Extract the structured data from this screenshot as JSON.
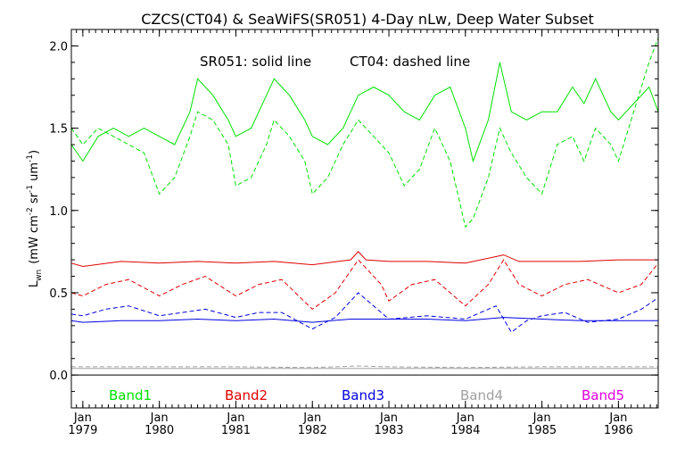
{
  "chart_data": {
    "type": "line",
    "title": "CZCS(CT04) & SeaWiFS(SR051) 4-Day nLw, Deep Water Subset",
    "annotation_solid": "SR051: solid line",
    "annotation_dashed": "CT04: dashed line",
    "ylabel": {
      "base": "L",
      "base_sub": "wn",
      "units_open": "(mW cm",
      "units_exp1": "-2",
      "units_mid": " sr",
      "units_exp2": "-1",
      "units_um": " um",
      "units_exp3": "-1",
      "units_close": ")"
    },
    "ylim": [
      -0.2,
      2.1
    ],
    "xlim": [
      1978.85,
      1986.52
    ],
    "y_ticks": [
      {
        "value": 0.0,
        "label": "0.0"
      },
      {
        "value": 0.5,
        "label": "0.5"
      },
      {
        "value": 1.0,
        "label": "1.0"
      },
      {
        "value": 1.5,
        "label": "1.5"
      },
      {
        "value": 2.0,
        "label": "2.0"
      }
    ],
    "x_ticks": [
      {
        "value": 1979.0,
        "month": "Jan",
        "year": "1979"
      },
      {
        "value": 1980.0,
        "month": "Jan",
        "year": "1980"
      },
      {
        "value": 1981.0,
        "month": "Jan",
        "year": "1981"
      },
      {
        "value": 1982.0,
        "month": "Jan",
        "year": "1982"
      },
      {
        "value": 1983.0,
        "month": "Jan",
        "year": "1983"
      },
      {
        "value": 1984.0,
        "month": "Jan",
        "year": "1984"
      },
      {
        "value": 1985.0,
        "month": "Jan",
        "year": "1985"
      },
      {
        "value": 1986.0,
        "month": "Jan",
        "year": "1986"
      }
    ],
    "legend": [
      {
        "label": "Band1",
        "color": "#00e000"
      },
      {
        "label": "Band2",
        "color": "#e00000"
      },
      {
        "label": "Band3",
        "color": "#0000e0"
      },
      {
        "label": "Band4",
        "color": "#a0a0a0"
      },
      {
        "label": "Band5",
        "color": "#e000e0"
      }
    ],
    "series": [
      {
        "band": "Band1",
        "sensor": "SR051",
        "style": "solid",
        "color": "#00e000",
        "x": [
          1978.85,
          1979.0,
          1979.2,
          1979.4,
          1979.6,
          1979.8,
          1980.0,
          1980.2,
          1980.4,
          1980.5,
          1980.7,
          1980.9,
          1981.0,
          1981.2,
          1981.4,
          1981.5,
          1981.7,
          1981.9,
          1982.0,
          1982.2,
          1982.4,
          1982.6,
          1982.8,
          1983.0,
          1983.2,
          1983.4,
          1983.6,
          1983.8,
          1984.0,
          1984.1,
          1984.3,
          1984.45,
          1984.6,
          1984.8,
          1985.0,
          1985.2,
          1985.4,
          1985.55,
          1985.7,
          1985.9,
          1986.0,
          1986.2,
          1986.4,
          1986.52
        ],
        "y": [
          1.4,
          1.3,
          1.45,
          1.5,
          1.45,
          1.5,
          1.45,
          1.4,
          1.6,
          1.8,
          1.7,
          1.55,
          1.45,
          1.5,
          1.7,
          1.8,
          1.7,
          1.55,
          1.45,
          1.4,
          1.5,
          1.7,
          1.75,
          1.7,
          1.6,
          1.55,
          1.7,
          1.75,
          1.5,
          1.3,
          1.55,
          1.9,
          1.6,
          1.55,
          1.6,
          1.6,
          1.75,
          1.65,
          1.8,
          1.6,
          1.55,
          1.65,
          1.75,
          1.6
        ]
      },
      {
        "band": "Band1",
        "sensor": "CT04",
        "style": "dashed",
        "color": "#00e000",
        "x": [
          1978.85,
          1979.0,
          1979.2,
          1979.4,
          1979.6,
          1979.8,
          1980.0,
          1980.2,
          1980.4,
          1980.5,
          1980.7,
          1980.9,
          1981.0,
          1981.2,
          1981.4,
          1981.5,
          1981.7,
          1981.9,
          1982.0,
          1982.2,
          1982.4,
          1982.6,
          1982.8,
          1983.0,
          1983.2,
          1983.4,
          1983.6,
          1983.8,
          1984.0,
          1984.1,
          1984.3,
          1984.45,
          1984.6,
          1984.8,
          1985.0,
          1985.2,
          1985.4,
          1985.55,
          1985.7,
          1985.9,
          1986.0,
          1986.2,
          1986.4,
          1986.52
        ],
        "y": [
          1.5,
          1.4,
          1.5,
          1.45,
          1.4,
          1.35,
          1.1,
          1.2,
          1.45,
          1.6,
          1.55,
          1.4,
          1.15,
          1.2,
          1.4,
          1.55,
          1.45,
          1.3,
          1.1,
          1.2,
          1.4,
          1.55,
          1.45,
          1.35,
          1.15,
          1.25,
          1.5,
          1.3,
          0.9,
          0.95,
          1.2,
          1.5,
          1.35,
          1.2,
          1.1,
          1.4,
          1.45,
          1.3,
          1.5,
          1.4,
          1.3,
          1.6,
          1.9,
          2.05
        ]
      },
      {
        "band": "Band2",
        "sensor": "SR051",
        "style": "solid",
        "color": "#e00000",
        "x": [
          1978.85,
          1979.0,
          1979.5,
          1980.0,
          1980.5,
          1981.0,
          1981.5,
          1982.0,
          1982.5,
          1982.6,
          1982.7,
          1983.0,
          1983.5,
          1984.0,
          1984.5,
          1984.7,
          1985.0,
          1985.5,
          1986.0,
          1986.52
        ],
        "y": [
          0.68,
          0.66,
          0.69,
          0.68,
          0.69,
          0.68,
          0.69,
          0.67,
          0.7,
          0.75,
          0.7,
          0.69,
          0.69,
          0.68,
          0.73,
          0.69,
          0.69,
          0.69,
          0.7,
          0.7
        ]
      },
      {
        "band": "Band2",
        "sensor": "CT04",
        "style": "dashed",
        "color": "#e00000",
        "x": [
          1978.85,
          1979.0,
          1979.3,
          1979.6,
          1980.0,
          1980.3,
          1980.6,
          1981.0,
          1981.3,
          1981.6,
          1982.0,
          1982.3,
          1982.6,
          1982.9,
          1983.0,
          1983.3,
          1983.6,
          1984.0,
          1984.3,
          1984.5,
          1984.7,
          1985.0,
          1985.3,
          1985.6,
          1986.0,
          1986.3,
          1986.52
        ],
        "y": [
          0.5,
          0.48,
          0.55,
          0.58,
          0.48,
          0.55,
          0.6,
          0.48,
          0.55,
          0.58,
          0.4,
          0.5,
          0.7,
          0.55,
          0.45,
          0.55,
          0.58,
          0.42,
          0.55,
          0.7,
          0.55,
          0.48,
          0.55,
          0.58,
          0.5,
          0.55,
          0.68
        ]
      },
      {
        "band": "Band3",
        "sensor": "SR051",
        "style": "solid",
        "color": "#0000e0",
        "x": [
          1978.85,
          1979.0,
          1979.5,
          1980.0,
          1980.5,
          1981.0,
          1981.5,
          1982.0,
          1982.5,
          1983.0,
          1983.5,
          1984.0,
          1984.5,
          1985.0,
          1985.5,
          1986.0,
          1986.52
        ],
        "y": [
          0.33,
          0.32,
          0.33,
          0.33,
          0.34,
          0.33,
          0.34,
          0.32,
          0.34,
          0.34,
          0.34,
          0.33,
          0.35,
          0.34,
          0.33,
          0.33,
          0.33
        ]
      },
      {
        "band": "Band3",
        "sensor": "CT04",
        "style": "dashed",
        "color": "#0000e0",
        "x": [
          1978.85,
          1979.0,
          1979.3,
          1979.6,
          1980.0,
          1980.3,
          1980.6,
          1981.0,
          1981.3,
          1981.6,
          1982.0,
          1982.3,
          1982.6,
          1982.9,
          1983.0,
          1983.5,
          1984.0,
          1984.4,
          1984.6,
          1984.8,
          1985.0,
          1985.3,
          1985.6,
          1986.0,
          1986.3,
          1986.52
        ],
        "y": [
          0.37,
          0.36,
          0.4,
          0.42,
          0.36,
          0.38,
          0.4,
          0.35,
          0.38,
          0.38,
          0.28,
          0.35,
          0.5,
          0.38,
          0.34,
          0.36,
          0.34,
          0.42,
          0.26,
          0.33,
          0.36,
          0.38,
          0.32,
          0.34,
          0.4,
          0.47
        ]
      },
      {
        "band": "Band4",
        "sensor": "SR051",
        "style": "solid",
        "color": "#a0a0a0",
        "x": [
          1978.85,
          1980.0,
          1981.0,
          1982.0,
          1983.0,
          1984.0,
          1985.0,
          1986.0,
          1986.52
        ],
        "y": [
          0.04,
          0.04,
          0.04,
          0.04,
          0.04,
          0.04,
          0.04,
          0.04,
          0.04
        ]
      },
      {
        "band": "Band4",
        "sensor": "CT04",
        "style": "dashed",
        "color": "#a0a0a0",
        "x": [
          1978.85,
          1980.0,
          1981.0,
          1982.0,
          1982.6,
          1983.0,
          1984.0,
          1985.0,
          1986.0,
          1986.52
        ],
        "y": [
          0.05,
          0.05,
          0.05,
          0.045,
          0.055,
          0.05,
          0.045,
          0.05,
          0.05,
          0.05
        ]
      }
    ],
    "grid": false,
    "zero_line": true
  }
}
